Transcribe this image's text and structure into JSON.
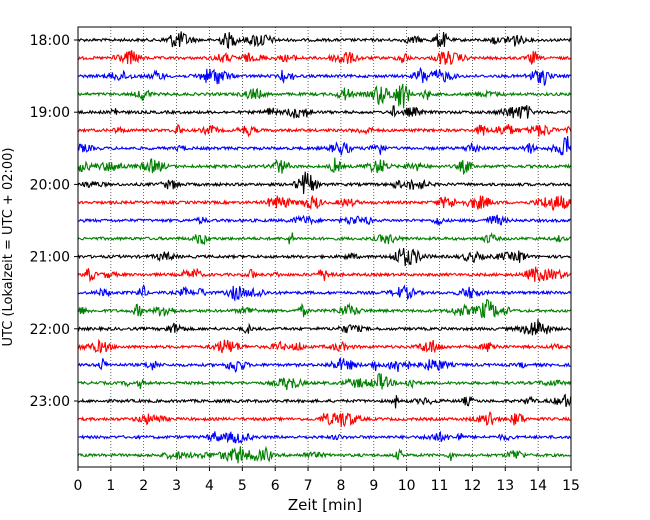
{
  "chart_data": {
    "type": "line",
    "title": "",
    "xlabel": "Zeit  [min]",
    "ylabel": "UTC (Lokalzeit = UTC + 02:00)",
    "xlim": [
      0,
      15
    ],
    "x_ticks": [
      0,
      1,
      2,
      3,
      4,
      5,
      6,
      7,
      8,
      9,
      10,
      11,
      12,
      13,
      14,
      15
    ],
    "x_tick_labels": [
      "0",
      "1",
      "2",
      "3",
      "4",
      "5",
      "6",
      "7",
      "8",
      "9",
      "10",
      "11",
      "12",
      "13",
      "14",
      "15"
    ],
    "y_tick_labels": [
      "18:00",
      "19:00",
      "20:00",
      "21:00",
      "22:00",
      "23:00"
    ],
    "y_tick_rows": [
      0,
      4,
      8,
      12,
      16,
      20
    ],
    "grid": "vertical dotted",
    "legend": "none",
    "trace_color_cycle": [
      "#000000",
      "#ff0000",
      "#0000ff",
      "#008000"
    ],
    "series": [
      {
        "start": "18:00",
        "color": "#000000"
      },
      {
        "start": "18:15",
        "color": "#ff0000"
      },
      {
        "start": "18:30",
        "color": "#0000ff"
      },
      {
        "start": "18:45",
        "color": "#008000"
      },
      {
        "start": "19:00",
        "color": "#000000"
      },
      {
        "start": "19:15",
        "color": "#ff0000"
      },
      {
        "start": "19:30",
        "color": "#0000ff"
      },
      {
        "start": "19:45",
        "color": "#008000"
      },
      {
        "start": "20:00",
        "color": "#000000"
      },
      {
        "start": "20:15",
        "color": "#ff0000"
      },
      {
        "start": "20:30",
        "color": "#0000ff"
      },
      {
        "start": "20:45",
        "color": "#008000"
      },
      {
        "start": "21:00",
        "color": "#000000"
      },
      {
        "start": "21:15",
        "color": "#ff0000"
      },
      {
        "start": "21:30",
        "color": "#0000ff"
      },
      {
        "start": "21:45",
        "color": "#008000"
      },
      {
        "start": "22:00",
        "color": "#000000"
      },
      {
        "start": "22:15",
        "color": "#ff0000"
      },
      {
        "start": "22:30",
        "color": "#0000ff"
      },
      {
        "start": "22:45",
        "color": "#008000"
      },
      {
        "start": "23:00",
        "color": "#000000"
      },
      {
        "start": "23:15",
        "color": "#ff0000"
      },
      {
        "start": "23:30",
        "color": "#0000ff"
      },
      {
        "start": "23:45",
        "color": "#008000"
      }
    ]
  }
}
